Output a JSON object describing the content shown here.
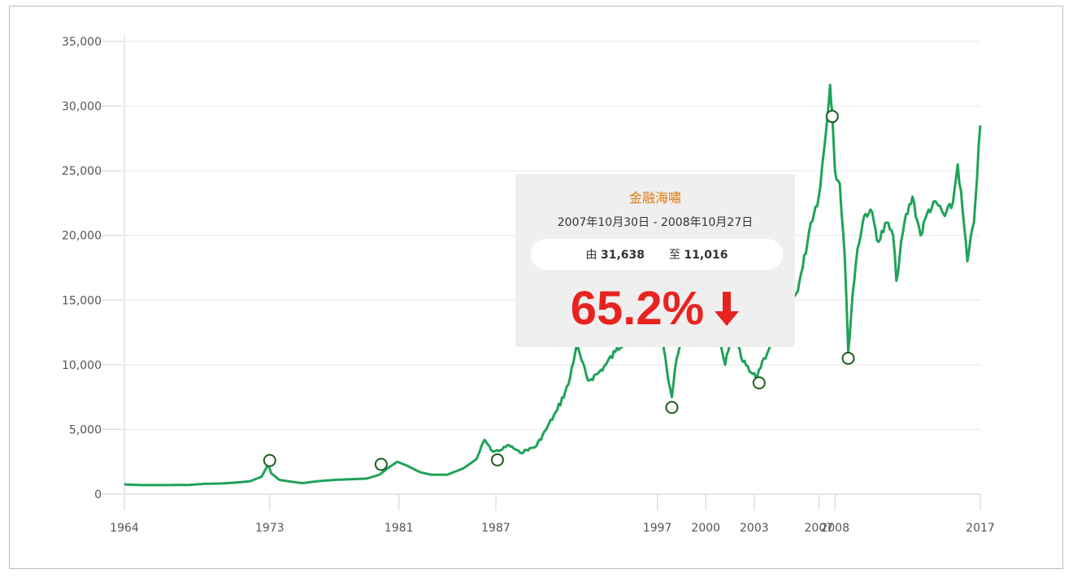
{
  "tooltip": {
    "title": "金融海嘯",
    "dates": "2007年10月30日 - 2008年10月27日",
    "from_label": "由",
    "from_value": "31,638",
    "to_label": "至",
    "to_value": "11,016",
    "percent": "65.2%",
    "direction_icon": "arrow-down-icon"
  },
  "colors": {
    "line": "#1fa25a",
    "marker": "#1b5e20",
    "tooltip_bg": "#efefef",
    "tooltip_title": "#e07b12",
    "percent": "#e8231f"
  },
  "chart_data": {
    "type": "line",
    "title": "",
    "xlabel": "",
    "ylabel": "",
    "xlim": [
      1964,
      2017
    ],
    "ylim": [
      0,
      35000
    ],
    "y_ticks": [
      0,
      5000,
      10000,
      15000,
      20000,
      25000,
      30000,
      35000
    ],
    "y_tick_labels": [
      "0",
      "5,000",
      "10,000",
      "15,000",
      "20,000",
      "25,000",
      "30,000",
      "35,000"
    ],
    "x_tick_labels": [
      "1964",
      "1973",
      "1981",
      "1987",
      "1997",
      "2000",
      "2003",
      "2007",
      "2008",
      "2017"
    ],
    "x_tick_years": [
      1964,
      1973,
      1981,
      1987,
      1997,
      2000,
      2003,
      2007,
      2008,
      2017
    ],
    "grid": true,
    "series": [
      {
        "values_x": [
          1964.0,
          1965.0,
          1966.0,
          1967.0,
          1968.0,
          1969.0,
          1970.0,
          1971.0,
          1971.8,
          1972.5,
          1972.9,
          1973.1,
          1973.6,
          1974.4,
          1975.0,
          1976.0,
          1977.0,
          1978.0,
          1979.0,
          1979.8,
          1980.3,
          1980.9,
          1981.5,
          1982.3,
          1983.0,
          1984.0,
          1985.0,
          1985.8,
          1986.3,
          1986.8,
          1987.3,
          1987.8,
          1988.5,
          1989.5,
          1990.2,
          1990.8,
          1991.5,
          1992.0,
          1992.7,
          1993.3,
          1993.8,
          1994.4,
          1995.0,
          1995.5,
          1996.0,
          1996.5,
          1997.0,
          1997.3,
          1997.6,
          1997.9,
          1998.2,
          1998.6,
          1999.0,
          1999.5,
          2000.0,
          2000.3,
          2000.7,
          2001.2,
          2001.7,
          2002.2,
          2002.7,
          2003.1,
          2003.6,
          2004.0,
          2004.5,
          2005.0,
          2005.6,
          2006.0,
          2006.5,
          2007.0,
          2007.4,
          2007.7,
          2007.83,
          2008.0,
          2008.3,
          2008.6,
          2008.82,
          2009.1,
          2009.4,
          2009.8,
          2010.2,
          2010.7,
          2011.2,
          2011.6,
          2011.8,
          2012.3,
          2012.8,
          2013.3,
          2013.8,
          2014.3,
          2014.8,
          2015.3,
          2015.6,
          2015.9,
          2016.2,
          2016.6,
          2017.0
        ],
        "values_y": [
          750,
          700,
          700,
          700,
          710,
          800,
          820,
          900,
          1000,
          1350,
          2300,
          1600,
          1100,
          950,
          850,
          1000,
          1100,
          1150,
          1200,
          1500,
          2000,
          2500,
          2200,
          1700,
          1500,
          1500,
          2000,
          2700,
          4200,
          3300,
          3400,
          3800,
          3200,
          3700,
          5200,
          6500,
          8500,
          11500,
          8800,
          9300,
          10000,
          11000,
          12000,
          11500,
          13000,
          16000,
          15500,
          12500,
          9500,
          7500,
          10500,
          13000,
          14000,
          15500,
          16000,
          14000,
          12500,
          10000,
          12500,
          10500,
          9500,
          9000,
          10500,
          11500,
          13000,
          14500,
          15500,
          17500,
          21000,
          23000,
          27500,
          31638,
          29500,
          25000,
          24000,
          18500,
          11016,
          15500,
          19000,
          21500,
          22000,
          19500,
          21000,
          20000,
          16500,
          21000,
          23000,
          20000,
          22000,
          22500,
          21500,
          22500,
          25500,
          22000,
          18000,
          21000,
          28500
        ],
        "markers": [
          {
            "x": 1973.0,
            "y": 2600
          },
          {
            "x": 1979.9,
            "y": 2300
          },
          {
            "x": 1987.1,
            "y": 2650
          },
          {
            "x": 1997.9,
            "y": 6700
          },
          {
            "x": 2003.3,
            "y": 8600
          },
          {
            "x": 2007.83,
            "y": 29200
          },
          {
            "x": 2008.82,
            "y": 10500
          }
        ]
      }
    ]
  }
}
